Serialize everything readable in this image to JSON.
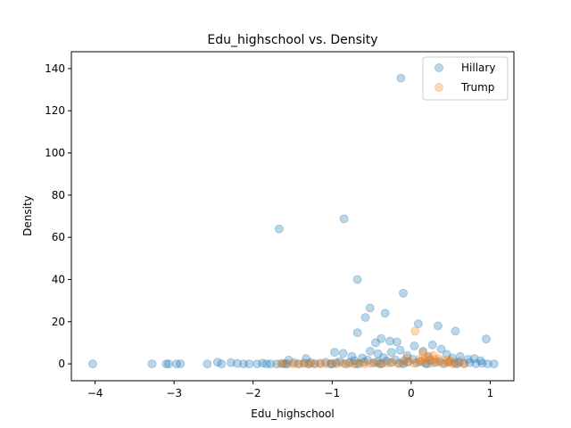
{
  "chart_data": {
    "type": "scatter",
    "title": "Edu_highschool vs. Density",
    "xlabel": "Edu_highschool",
    "ylabel": "Density",
    "xlim": [
      -4.3,
      1.3
    ],
    "ylim": [
      -8,
      148
    ],
    "xticks": [
      -4,
      -3,
      -2,
      -1,
      0,
      1
    ],
    "xtick_labels": [
      "−4",
      "−3",
      "−2",
      "−1",
      "0",
      "1"
    ],
    "yticks": [
      0,
      20,
      40,
      60,
      80,
      100,
      120,
      140
    ],
    "ytick_labels": [
      "0",
      "20",
      "40",
      "60",
      "80",
      "100",
      "120",
      "140"
    ],
    "grid": false,
    "legend_position": "top-right",
    "series": [
      {
        "name": "Hillary",
        "color": "#1f77b4",
        "points": [
          [
            -0.13,
            135.5
          ],
          [
            -0.85,
            68.8
          ],
          [
            -1.67,
            64
          ],
          [
            -0.68,
            40
          ],
          [
            -0.1,
            33.5
          ],
          [
            -0.52,
            26.5
          ],
          [
            -0.33,
            24
          ],
          [
            -0.58,
            22
          ],
          [
            0.09,
            19
          ],
          [
            0.34,
            18
          ],
          [
            0.56,
            15.5
          ],
          [
            -0.68,
            14.8
          ],
          [
            0.95,
            11.8
          ],
          [
            -0.38,
            12
          ],
          [
            -0.27,
            10.8
          ],
          [
            -0.18,
            10.4
          ],
          [
            0.04,
            8.5
          ],
          [
            0.27,
            9
          ],
          [
            0.38,
            7
          ],
          [
            -0.45,
            10
          ],
          [
            -0.14,
            6.5
          ],
          [
            -0.97,
            5.5
          ],
          [
            -0.86,
            5
          ],
          [
            -0.52,
            6
          ],
          [
            -0.42,
            4.8
          ],
          [
            -0.25,
            5.5
          ],
          [
            0.15,
            6
          ],
          [
            0.45,
            4.5
          ],
          [
            0.62,
            3.5
          ],
          [
            0.8,
            2.5
          ],
          [
            -1.33,
            2.5
          ],
          [
            -1.55,
            1.8
          ],
          [
            -0.75,
            3.5
          ],
          [
            -0.62,
            2.8
          ],
          [
            -0.35,
            3
          ],
          [
            -0.05,
            4
          ],
          [
            0.22,
            3.3
          ],
          [
            0.52,
            2.8
          ],
          [
            0.72,
            2.2
          ],
          [
            0.88,
            1.5
          ],
          [
            -4.03,
            0
          ],
          [
            -3.28,
            0
          ],
          [
            -3.1,
            0
          ],
          [
            -3.07,
            0
          ],
          [
            -2.97,
            0
          ],
          [
            -2.92,
            0
          ],
          [
            -2.58,
            0
          ],
          [
            -2.45,
            0.8
          ],
          [
            -2.4,
            0
          ],
          [
            -2.28,
            0.6
          ],
          [
            -2.2,
            0.2
          ],
          [
            -2.12,
            0
          ],
          [
            -2.05,
            0
          ],
          [
            -1.95,
            0
          ],
          [
            -1.88,
            0.3
          ],
          [
            -1.83,
            0
          ],
          [
            -1.78,
            0
          ],
          [
            -1.7,
            0
          ],
          [
            -1.63,
            0.2
          ],
          [
            -1.57,
            0
          ],
          [
            -1.48,
            0.5
          ],
          [
            -1.42,
            0
          ],
          [
            -1.35,
            0.4
          ],
          [
            -1.27,
            0.6
          ],
          [
            -1.22,
            0
          ],
          [
            -1.15,
            0.3
          ],
          [
            -1.08,
            0.8
          ],
          [
            -1.02,
            0
          ],
          [
            -0.95,
            0.5
          ],
          [
            -0.9,
            1.2
          ],
          [
            -0.83,
            0
          ],
          [
            -0.78,
            0.7
          ],
          [
            -0.72,
            1.5
          ],
          [
            -0.66,
            0
          ],
          [
            -0.6,
            0.9
          ],
          [
            -0.55,
            1.8
          ],
          [
            -0.48,
            0.4
          ],
          [
            -0.43,
            1.1
          ],
          [
            -0.37,
            0.2
          ],
          [
            -0.31,
            1.4
          ],
          [
            -0.26,
            0.6
          ],
          [
            -0.2,
            1.9
          ],
          [
            -0.15,
            0.3
          ],
          [
            -0.09,
            1.6
          ],
          [
            -0.04,
            0.8
          ],
          [
            0.02,
            2.2
          ],
          [
            0.07,
            0.5
          ],
          [
            0.12,
            1.3
          ],
          [
            0.18,
            0.2
          ],
          [
            0.24,
            1.7
          ],
          [
            0.3,
            0.6
          ],
          [
            0.36,
            1.2
          ],
          [
            0.42,
            0.1
          ],
          [
            0.48,
            0.9
          ],
          [
            0.55,
            0.4
          ],
          [
            0.61,
            1
          ],
          [
            0.67,
            0.2
          ],
          [
            0.74,
            0.6
          ],
          [
            0.82,
            0.1
          ],
          [
            0.9,
            0.3
          ],
          [
            1.05,
            0
          ],
          [
            0.97,
            0
          ],
          [
            0.58,
            0
          ],
          [
            0.2,
            0
          ],
          [
            -0.1,
            0
          ],
          [
            -0.4,
            0
          ],
          [
            -0.7,
            0
          ],
          [
            -1,
            0
          ],
          [
            -1.3,
            0
          ],
          [
            -1.6,
            0
          ]
        ]
      },
      {
        "name": "Trump",
        "color": "#ff7f0e",
        "points": [
          [
            0.05,
            15.5
          ],
          [
            0.15,
            5.5
          ],
          [
            0.28,
            4
          ],
          [
            0.22,
            3.5
          ],
          [
            0.35,
            2.5
          ],
          [
            -0.05,
            2.8
          ],
          [
            0.1,
            2.2
          ],
          [
            0.45,
            1.8
          ],
          [
            -1.65,
            0
          ],
          [
            -1.58,
            0.1
          ],
          [
            -1.5,
            0
          ],
          [
            -1.43,
            0
          ],
          [
            -1.36,
            0.2
          ],
          [
            -1.29,
            0
          ],
          [
            -1.22,
            0.1
          ],
          [
            -1.15,
            0
          ],
          [
            -1.08,
            0
          ],
          [
            -1.01,
            0.2
          ],
          [
            -0.94,
            0
          ],
          [
            -0.87,
            0.3
          ],
          [
            -0.8,
            0
          ],
          [
            -0.73,
            0.1
          ],
          [
            -0.66,
            0.4
          ],
          [
            -0.59,
            0
          ],
          [
            -0.52,
            0.2
          ],
          [
            -0.45,
            0.6
          ],
          [
            -0.38,
            0
          ],
          [
            -0.31,
            0.3
          ],
          [
            -0.24,
            0.8
          ],
          [
            -0.17,
            0.1
          ],
          [
            -0.1,
            0.5
          ],
          [
            -0.03,
            1.2
          ],
          [
            0.04,
            0.2
          ],
          [
            0.11,
            0.9
          ],
          [
            0.18,
            1.5
          ],
          [
            0.25,
            0.3
          ],
          [
            0.32,
            1
          ],
          [
            0.39,
            0.2
          ],
          [
            0.46,
            0.7
          ],
          [
            0.53,
            0
          ],
          [
            0.6,
            0.4
          ],
          [
            0.67,
            0
          ],
          [
            0.5,
            1.4
          ],
          [
            0.3,
            2
          ],
          [
            0.18,
            2.6
          ]
        ]
      }
    ]
  }
}
